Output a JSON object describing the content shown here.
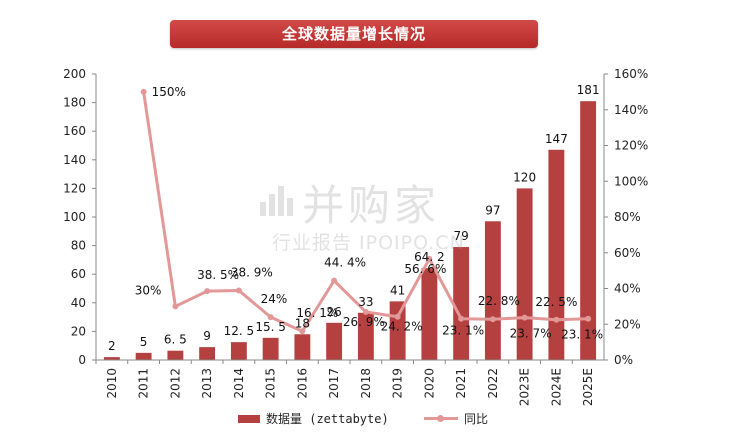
{
  "title": "全球数据量增长情况",
  "legend": {
    "bar_label": "数据量 (zettabyte)",
    "line_label": "同比"
  },
  "watermark": {
    "main": "并购家",
    "sub": "行业报告 IPOIPO.CN"
  },
  "colors": {
    "bar": "#b4403f",
    "line": "#e39898",
    "banner": "#c0392b"
  },
  "chart_data": {
    "type": "bar",
    "categories": [
      "2010",
      "2011",
      "2012",
      "2013",
      "2014",
      "2015",
      "2016",
      "2017",
      "2018",
      "2019",
      "2020",
      "2021",
      "2022",
      "2023E",
      "2024E",
      "2025E"
    ],
    "series": [
      {
        "name": "数据量 (zettabyte)",
        "type": "bar",
        "axis": "left",
        "values": [
          2,
          5,
          6.5,
          9,
          12.5,
          15.5,
          18,
          26,
          33,
          41,
          64.2,
          79,
          97,
          120,
          147,
          181
        ],
        "labels": [
          "2",
          "5",
          "6. 5",
          "9",
          "12. 5",
          "15. 5",
          "18",
          "26",
          "33",
          "41",
          "64. 2",
          "79",
          "97",
          "120",
          "147",
          "181"
        ]
      },
      {
        "name": "同比",
        "type": "line",
        "axis": "right",
        "values": [
          null,
          150,
          30,
          38.5,
          38.9,
          24,
          16.1,
          44.4,
          26.9,
          24.2,
          56.6,
          23.1,
          22.8,
          23.7,
          22.5,
          23.1
        ],
        "labels": [
          "",
          "150%",
          "30%",
          "38. 5%",
          "38. 9%",
          "24%",
          "16. 1%",
          "44. 4%",
          "26. 9%",
          "24. 2%",
          "56. 6%",
          "23. 1%",
          "22. 8%",
          "23. 7%",
          "22. 5%",
          "23. 1%"
        ]
      }
    ],
    "left_axis": {
      "min": 0,
      "max": 200,
      "ticks": [
        "0",
        "20",
        "40",
        "60",
        "80",
        "100",
        "120",
        "140",
        "160",
        "180",
        "200"
      ]
    },
    "right_axis": {
      "min": 0,
      "max": 160,
      "ticks": [
        "0%",
        "20%",
        "40%",
        "60%",
        "80%",
        "100%",
        "120%",
        "140%",
        "160%"
      ]
    },
    "grid": false,
    "legend_position": "bottom"
  }
}
